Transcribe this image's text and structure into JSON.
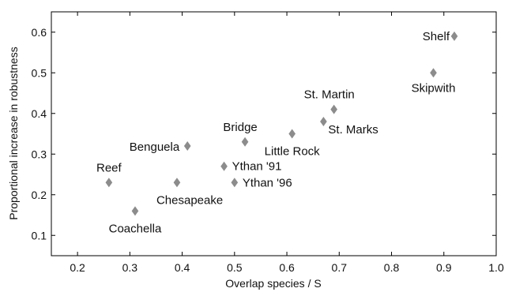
{
  "chart_data": {
    "type": "scatter",
    "title": "",
    "xlabel": "Overlap species / S",
    "ylabel": "Proportional increase in robustness",
    "xlim": [
      0.15,
      1.0
    ],
    "ylim": [
      0.05,
      0.65
    ],
    "xticks": [
      "0.2",
      "0.3",
      "0.4",
      "0.5",
      "0.6",
      "0.7",
      "0.8",
      "0.9",
      "1.0"
    ],
    "yticks": [
      "0.1",
      "0.2",
      "0.3",
      "0.4",
      "0.5",
      "0.6"
    ],
    "grid": false,
    "marker": "diamond",
    "marker_color": "#8c8c8c",
    "points": [
      {
        "label": "Shelf",
        "x": 0.92,
        "y": 0.59
      },
      {
        "label": "Skipwith",
        "x": 0.88,
        "y": 0.5
      },
      {
        "label": "St. Martin",
        "x": 0.69,
        "y": 0.41
      },
      {
        "label": "St. Marks",
        "x": 0.67,
        "y": 0.38
      },
      {
        "label": "Little Rock",
        "x": 0.61,
        "y": 0.35
      },
      {
        "label": "Bridge",
        "x": 0.52,
        "y": 0.33
      },
      {
        "label": "Benguela",
        "x": 0.41,
        "y": 0.32
      },
      {
        "label": "Ythan '91",
        "x": 0.48,
        "y": 0.27
      },
      {
        "label": "Ythan '96",
        "x": 0.5,
        "y": 0.23
      },
      {
        "label": "Chesapeake",
        "x": 0.39,
        "y": 0.23
      },
      {
        "label": "Reef",
        "x": 0.26,
        "y": 0.23
      },
      {
        "label": "Coachella",
        "x": 0.31,
        "y": 0.16
      }
    ]
  }
}
